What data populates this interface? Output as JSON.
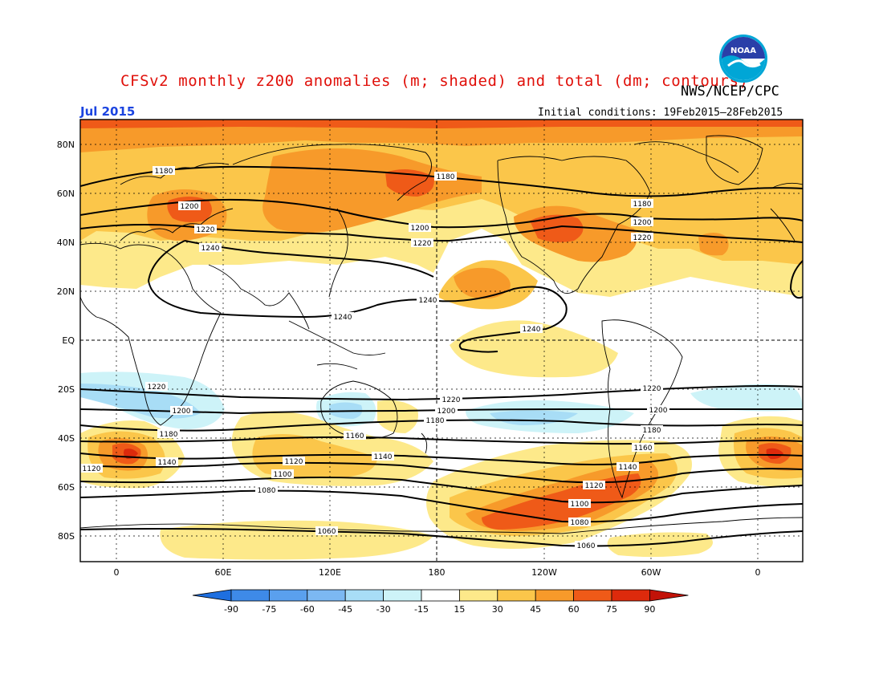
{
  "title": "CFSv2 monthly z200 anomalies (m; shaded) and total (dm; contours)",
  "agency": "NWS/NCEP/CPC",
  "month": "Jul 2015",
  "initial_conditions": "Initial conditions: 19Feb2015–28Feb2015",
  "logo": {
    "text": "NOAA",
    "colors": {
      "ring": "#00a6d6",
      "center": "#2a3fa8"
    }
  },
  "lat_labels": [
    "80N",
    "60N",
    "40N",
    "20N",
    "EQ",
    "20S",
    "40S",
    "60S",
    "80S"
  ],
  "lon_labels": [
    "0",
    "60E",
    "120E",
    "180",
    "120W",
    "60W",
    "0"
  ],
  "contour_labels": {
    "north": [
      "1180",
      "1200",
      "1220",
      "1240",
      "1180",
      "1200",
      "1220",
      "1180",
      "1200",
      "1220",
      "1240",
      "1240",
      "1240"
    ],
    "south": [
      "1220",
      "1200",
      "1180",
      "1160",
      "1140",
      "1120",
      "1120",
      "1100",
      "1080",
      "1060",
      "1220",
      "1200",
      "1180",
      "1160",
      "1140",
      "1120",
      "1100",
      "1080",
      "1060",
      "1220",
      "1200",
      "1180",
      "1140"
    ]
  },
  "colorbar": {
    "labels": [
      "-90",
      "-75",
      "-60",
      "-45",
      "-30",
      "-15",
      "15",
      "30",
      "45",
      "60",
      "75",
      "90"
    ],
    "colors": [
      "#1e6fe0",
      "#3e8ae8",
      "#5aa0ee",
      "#7cb8f2",
      "#a8ddf6",
      "#cdf3f8",
      "#ffffff",
      "#fde98a",
      "#fbc64a",
      "#f79a2a",
      "#ef5a18",
      "#dd2a0c",
      "#c21208"
    ]
  },
  "colors": {
    "title": "#e0100a",
    "month": "#1b44e0"
  }
}
